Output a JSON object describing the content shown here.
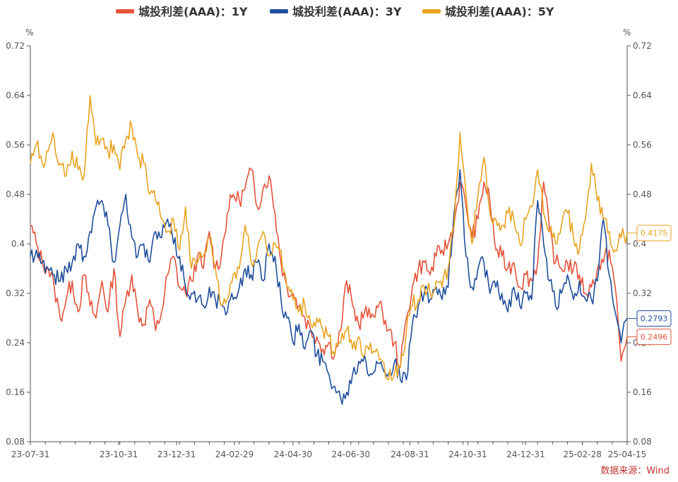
{
  "chart_data": {
    "type": "line",
    "legend": [
      "城投利差(AAA)：1Y",
      "城投利差(AAA)：3Y",
      "城投利差(AAA)：5Y"
    ],
    "unit_left": "%",
    "unit_right": "%",
    "ylim": [
      0.08,
      0.72
    ],
    "yticks": [
      "0.08",
      "0.16",
      "0.24",
      "0.32",
      "0.4",
      "0.48",
      "0.56",
      "0.64",
      "0.72"
    ],
    "x_range": [
      0,
      100
    ],
    "xticks": [
      {
        "label": "23-07-31",
        "x": 0
      },
      {
        "label": "23-10-31",
        "x": 14.8
      },
      {
        "label": "23-12-31",
        "x": 24.5
      },
      {
        "label": "24-02-29",
        "x": 34.2
      },
      {
        "label": "24-04-30",
        "x": 44.0
      },
      {
        "label": "24-06-30",
        "x": 53.7
      },
      {
        "label": "24-08-31",
        "x": 63.6
      },
      {
        "label": "24-10-31",
        "x": 73.3
      },
      {
        "label": "24-12-31",
        "x": 83.0
      },
      {
        "label": "25-02-28",
        "x": 92.5
      },
      {
        "label": "25-04-15",
        "x": 100
      }
    ],
    "series": [
      {
        "name": "城投利差(AAA)：1Y",
        "color": "#e5533a",
        "end_label": "0.2496",
        "points": [
          [
            0,
            0.43
          ],
          [
            1,
            0.4
          ],
          [
            2,
            0.37
          ],
          [
            3,
            0.36
          ],
          [
            4,
            0.33
          ],
          [
            5,
            0.28
          ],
          [
            6,
            0.31
          ],
          [
            7,
            0.34
          ],
          [
            8,
            0.29
          ],
          [
            9,
            0.35
          ],
          [
            10,
            0.3
          ],
          [
            11,
            0.28
          ],
          [
            12,
            0.34
          ],
          [
            13,
            0.29
          ],
          [
            14,
            0.36
          ],
          [
            15,
            0.25
          ],
          [
            16,
            0.31
          ],
          [
            17,
            0.35
          ],
          [
            18,
            0.29
          ],
          [
            19,
            0.27
          ],
          [
            20,
            0.31
          ],
          [
            21,
            0.26
          ],
          [
            22,
            0.29
          ],
          [
            23,
            0.35
          ],
          [
            24,
            0.38
          ],
          [
            25,
            0.33
          ],
          [
            26,
            0.32
          ],
          [
            27,
            0.34
          ],
          [
            28,
            0.38
          ],
          [
            29,
            0.36
          ],
          [
            30,
            0.42
          ],
          [
            31,
            0.36
          ],
          [
            32,
            0.38
          ],
          [
            33,
            0.45
          ],
          [
            34,
            0.48
          ],
          [
            35,
            0.47
          ],
          [
            36,
            0.49
          ],
          [
            37,
            0.52
          ],
          [
            38,
            0.46
          ],
          [
            39,
            0.49
          ],
          [
            40,
            0.51
          ],
          [
            41,
            0.45
          ],
          [
            42,
            0.37
          ],
          [
            43,
            0.33
          ],
          [
            44,
            0.32
          ],
          [
            45,
            0.3
          ],
          [
            46,
            0.28
          ],
          [
            47,
            0.26
          ],
          [
            48,
            0.25
          ],
          [
            49,
            0.23
          ],
          [
            50,
            0.24
          ],
          [
            51,
            0.22
          ],
          [
            52,
            0.26
          ],
          [
            53,
            0.34
          ],
          [
            54,
            0.3
          ],
          [
            55,
            0.27
          ],
          [
            56,
            0.29
          ],
          [
            57,
            0.28
          ],
          [
            58,
            0.3
          ],
          [
            59,
            0.29
          ],
          [
            60,
            0.26
          ],
          [
            61,
            0.24
          ],
          [
            62,
            0.2
          ],
          [
            63,
            0.28
          ],
          [
            64,
            0.33
          ],
          [
            65,
            0.36
          ],
          [
            66,
            0.37
          ],
          [
            67,
            0.35
          ],
          [
            68,
            0.38
          ],
          [
            69,
            0.39
          ],
          [
            70,
            0.4
          ],
          [
            71,
            0.43
          ],
          [
            72,
            0.5
          ],
          [
            73,
            0.46
          ],
          [
            74,
            0.41
          ],
          [
            75,
            0.44
          ],
          [
            76,
            0.5
          ],
          [
            77,
            0.47
          ],
          [
            78,
            0.39
          ],
          [
            79,
            0.38
          ],
          [
            80,
            0.36
          ],
          [
            81,
            0.37
          ],
          [
            82,
            0.33
          ],
          [
            83,
            0.35
          ],
          [
            84,
            0.34
          ],
          [
            85,
            0.37
          ],
          [
            86,
            0.5
          ],
          [
            87,
            0.42
          ],
          [
            88,
            0.37
          ],
          [
            89,
            0.36
          ],
          [
            90,
            0.37
          ],
          [
            91,
            0.36
          ],
          [
            92,
            0.35
          ],
          [
            93,
            0.32
          ],
          [
            94,
            0.33
          ],
          [
            95,
            0.36
          ],
          [
            96,
            0.37
          ],
          [
            97,
            0.39
          ],
          [
            98,
            0.33
          ],
          [
            99,
            0.21
          ],
          [
            100,
            0.2496
          ]
        ]
      },
      {
        "name": "城投利差(AAA)：3Y",
        "color": "#1f4e9c",
        "end_label": "0.2793",
        "points": [
          [
            0,
            0.38
          ],
          [
            1,
            0.39
          ],
          [
            2,
            0.37
          ],
          [
            3,
            0.36
          ],
          [
            4,
            0.35
          ],
          [
            5,
            0.34
          ],
          [
            6,
            0.36
          ],
          [
            7,
            0.37
          ],
          [
            8,
            0.4
          ],
          [
            9,
            0.38
          ],
          [
            10,
            0.42
          ],
          [
            11,
            0.46
          ],
          [
            12,
            0.47
          ],
          [
            13,
            0.43
          ],
          [
            14,
            0.37
          ],
          [
            15,
            0.43
          ],
          [
            16,
            0.48
          ],
          [
            17,
            0.41
          ],
          [
            18,
            0.38
          ],
          [
            19,
            0.4
          ],
          [
            20,
            0.37
          ],
          [
            21,
            0.42
          ],
          [
            22,
            0.41
          ],
          [
            23,
            0.44
          ],
          [
            24,
            0.4
          ],
          [
            25,
            0.38
          ],
          [
            26,
            0.33
          ],
          [
            27,
            0.32
          ],
          [
            28,
            0.31
          ],
          [
            29,
            0.3
          ],
          [
            30,
            0.33
          ],
          [
            31,
            0.31
          ],
          [
            32,
            0.3
          ],
          [
            33,
            0.29
          ],
          [
            34,
            0.31
          ],
          [
            35,
            0.33
          ],
          [
            36,
            0.36
          ],
          [
            37,
            0.35
          ],
          [
            38,
            0.37
          ],
          [
            39,
            0.34
          ],
          [
            40,
            0.4
          ],
          [
            41,
            0.38
          ],
          [
            42,
            0.31
          ],
          [
            43,
            0.28
          ],
          [
            44,
            0.24
          ],
          [
            45,
            0.27
          ],
          [
            46,
            0.23
          ],
          [
            47,
            0.26
          ],
          [
            48,
            0.22
          ],
          [
            49,
            0.21
          ],
          [
            50,
            0.19
          ],
          [
            51,
            0.17
          ],
          [
            52,
            0.15
          ],
          [
            53,
            0.16
          ],
          [
            54,
            0.19
          ],
          [
            55,
            0.21
          ],
          [
            56,
            0.22
          ],
          [
            57,
            0.19
          ],
          [
            58,
            0.21
          ],
          [
            59,
            0.2
          ],
          [
            60,
            0.19
          ],
          [
            61,
            0.21
          ],
          [
            62,
            0.18
          ],
          [
            63,
            0.18
          ],
          [
            64,
            0.27
          ],
          [
            65,
            0.3
          ],
          [
            66,
            0.32
          ],
          [
            67,
            0.31
          ],
          [
            68,
            0.33
          ],
          [
            69,
            0.31
          ],
          [
            70,
            0.33
          ],
          [
            71,
            0.45
          ],
          [
            72,
            0.52
          ],
          [
            73,
            0.38
          ],
          [
            74,
            0.33
          ],
          [
            75,
            0.36
          ],
          [
            76,
            0.37
          ],
          [
            77,
            0.32
          ],
          [
            78,
            0.33
          ],
          [
            79,
            0.32
          ],
          [
            80,
            0.29
          ],
          [
            81,
            0.33
          ],
          [
            82,
            0.3
          ],
          [
            83,
            0.32
          ],
          [
            84,
            0.31
          ],
          [
            85,
            0.47
          ],
          [
            86,
            0.4
          ],
          [
            87,
            0.34
          ],
          [
            88,
            0.3
          ],
          [
            89,
            0.32
          ],
          [
            90,
            0.35
          ],
          [
            91,
            0.31
          ],
          [
            92,
            0.34
          ],
          [
            93,
            0.31
          ],
          [
            94,
            0.31
          ],
          [
            95,
            0.34
          ],
          [
            96,
            0.44
          ],
          [
            97,
            0.35
          ],
          [
            98,
            0.29
          ],
          [
            99,
            0.24
          ],
          [
            100,
            0.2793
          ]
        ]
      },
      {
        "name": "城投利差(AAA)：5Y",
        "color": "#e8a320",
        "end_label": "0.4175",
        "points": [
          [
            0,
            0.53
          ],
          [
            1,
            0.56
          ],
          [
            2,
            0.53
          ],
          [
            3,
            0.55
          ],
          [
            4,
            0.57
          ],
          [
            5,
            0.53
          ],
          [
            6,
            0.51
          ],
          [
            7,
            0.55
          ],
          [
            8,
            0.52
          ],
          [
            9,
            0.51
          ],
          [
            10,
            0.64
          ],
          [
            11,
            0.56
          ],
          [
            12,
            0.57
          ],
          [
            13,
            0.55
          ],
          [
            14,
            0.56
          ],
          [
            15,
            0.52
          ],
          [
            16,
            0.57
          ],
          [
            17,
            0.59
          ],
          [
            18,
            0.54
          ],
          [
            19,
            0.53
          ],
          [
            20,
            0.48
          ],
          [
            21,
            0.47
          ],
          [
            22,
            0.44
          ],
          [
            23,
            0.42
          ],
          [
            24,
            0.44
          ],
          [
            25,
            0.39
          ],
          [
            26,
            0.46
          ],
          [
            27,
            0.36
          ],
          [
            28,
            0.37
          ],
          [
            29,
            0.38
          ],
          [
            30,
            0.41
          ],
          [
            31,
            0.36
          ],
          [
            32,
            0.3
          ],
          [
            33,
            0.31
          ],
          [
            34,
            0.35
          ],
          [
            35,
            0.36
          ],
          [
            36,
            0.43
          ],
          [
            37,
            0.37
          ],
          [
            38,
            0.39
          ],
          [
            39,
            0.42
          ],
          [
            40,
            0.38
          ],
          [
            41,
            0.4
          ],
          [
            42,
            0.39
          ],
          [
            43,
            0.33
          ],
          [
            44,
            0.31
          ],
          [
            45,
            0.29
          ],
          [
            46,
            0.3
          ],
          [
            47,
            0.27
          ],
          [
            48,
            0.28
          ],
          [
            49,
            0.26
          ],
          [
            50,
            0.25
          ],
          [
            51,
            0.22
          ],
          [
            52,
            0.24
          ],
          [
            53,
            0.26
          ],
          [
            54,
            0.23
          ],
          [
            55,
            0.25
          ],
          [
            56,
            0.22
          ],
          [
            57,
            0.24
          ],
          [
            58,
            0.23
          ],
          [
            59,
            0.21
          ],
          [
            60,
            0.18
          ],
          [
            61,
            0.19
          ],
          [
            62,
            0.2
          ],
          [
            63,
            0.26
          ],
          [
            64,
            0.3
          ],
          [
            65,
            0.31
          ],
          [
            66,
            0.33
          ],
          [
            67,
            0.32
          ],
          [
            68,
            0.34
          ],
          [
            69,
            0.33
          ],
          [
            70,
            0.36
          ],
          [
            71,
            0.43
          ],
          [
            72,
            0.58
          ],
          [
            73,
            0.48
          ],
          [
            74,
            0.4
          ],
          [
            75,
            0.48
          ],
          [
            76,
            0.54
          ],
          [
            77,
            0.45
          ],
          [
            78,
            0.44
          ],
          [
            79,
            0.43
          ],
          [
            80,
            0.45
          ],
          [
            81,
            0.44
          ],
          [
            82,
            0.4
          ],
          [
            83,
            0.44
          ],
          [
            84,
            0.46
          ],
          [
            85,
            0.52
          ],
          [
            86,
            0.45
          ],
          [
            87,
            0.42
          ],
          [
            88,
            0.4
          ],
          [
            89,
            0.43
          ],
          [
            90,
            0.45
          ],
          [
            91,
            0.41
          ],
          [
            92,
            0.39
          ],
          [
            93,
            0.44
          ],
          [
            94,
            0.53
          ],
          [
            95,
            0.47
          ],
          [
            96,
            0.44
          ],
          [
            97,
            0.42
          ],
          [
            98,
            0.39
          ],
          [
            99,
            0.41
          ],
          [
            100,
            0.4175
          ]
        ]
      }
    ]
  },
  "source": "数据来源：Wind"
}
